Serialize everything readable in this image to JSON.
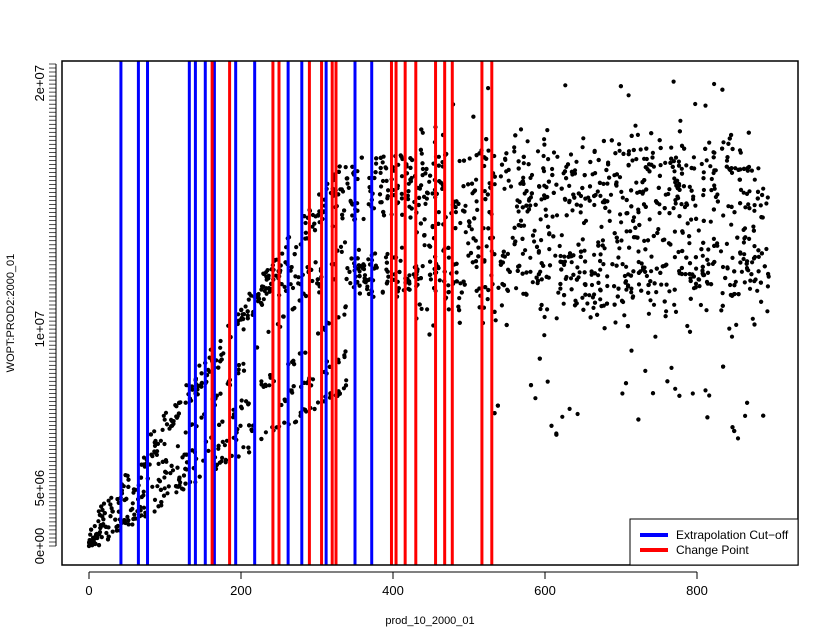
{
  "chart_data": {
    "type": "scatter",
    "title": "",
    "xlabel": "prod_10_2000_01",
    "ylabel": "WOPT:PROD2:2000_01",
    "xlim": [
      -40,
      930
    ],
    "ylim": [
      0,
      1
    ],
    "x_ticks": [
      0,
      200,
      400,
      600,
      800
    ],
    "x_tick_labels": [
      "0",
      "200",
      "400",
      "600",
      "800"
    ],
    "y_tick_labels": [
      "0e+00",
      "5e+06",
      "1e+07",
      "2e+07"
    ],
    "legend": {
      "position": "bottom-right",
      "entries": [
        {
          "label": "Extrapolation Cut−off",
          "color": "#0000ff"
        },
        {
          "label": "Change Point",
          "color": "#ff0000"
        }
      ]
    },
    "cutoff_lines_x": [
      42,
      65,
      77,
      132,
      140,
      153,
      165,
      193,
      218,
      262,
      280,
      312,
      350,
      372
    ],
    "change_point_lines_x": [
      162,
      185,
      242,
      250,
      290,
      306,
      320,
      325,
      398,
      404,
      416,
      430,
      456,
      468,
      478,
      517,
      530
    ],
    "point_color": "#000000",
    "scatter_summary": {
      "n_points": 2600,
      "x_range": [
        0,
        895
      ],
      "ramp_slopes": [
        0.00225,
        0.00185,
        0.00145,
        0.00118,
        0.00098
      ],
      "plateau_bands": [
        0.78,
        0.71,
        0.58,
        0.55
      ],
      "max_y": 0.97,
      "min_y_late": 0.22
    }
  }
}
